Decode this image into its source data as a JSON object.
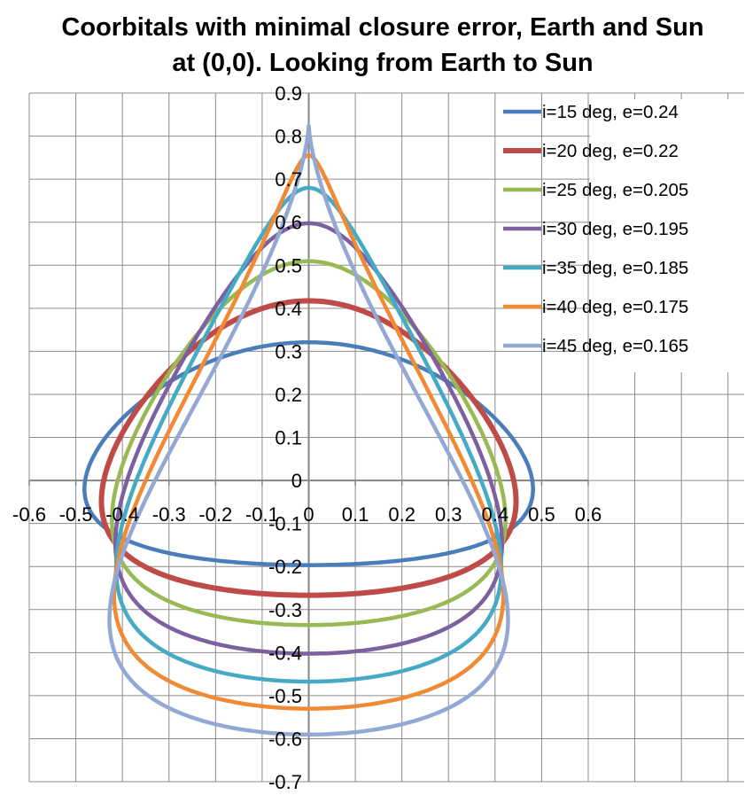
{
  "chart_data": {
    "type": "line",
    "title_lines": [
      "Coorbitals with minimal closure error, Earth and Sun",
      "at (0,0). Looking from Earth to Sun"
    ],
    "xlabel": "",
    "ylabel": "",
    "xlim": [
      -0.6,
      0.6
    ],
    "ylim": [
      -0.7,
      0.9
    ],
    "x_ticks": [
      "-0.6",
      "-0.5",
      "-0.4",
      "-0.3",
      "-0.2",
      "-0.1",
      "0",
      "0.1",
      "0.2",
      "0.3",
      "0.4",
      "0.5",
      "0.6"
    ],
    "y_ticks": [
      "0.9",
      "0.8",
      "0.7",
      "0.6",
      "0.5",
      "0.4",
      "0.3",
      "0.2",
      "0.1",
      "0",
      "-0.1",
      "-0.2",
      "-0.3",
      "-0.4",
      "-0.5",
      "-0.6",
      "-0.7"
    ],
    "grid": true,
    "legend_position": "top-right",
    "series": [
      {
        "name": "i=15 deg, e=0.24",
        "inclination_deg": 15,
        "eccentricity": 0.24,
        "color": "#4A7EBB",
        "top_y": 0.32,
        "bottom_y": -0.2
      },
      {
        "name": "i=20 deg, e=0.22",
        "inclination_deg": 20,
        "eccentricity": 0.22,
        "color": "#BE4B48",
        "top_y": 0.42,
        "bottom_y": -0.27
      },
      {
        "name": "i=25 deg, e=0.205",
        "inclination_deg": 25,
        "eccentricity": 0.205,
        "color": "#98B954",
        "top_y": 0.51,
        "bottom_y": -0.34
      },
      {
        "name": "i=30 deg, e=0.195",
        "inclination_deg": 30,
        "eccentricity": 0.195,
        "color": "#7D60A0",
        "top_y": 0.6,
        "bottom_y": -0.4
      },
      {
        "name": "i=35 deg, e=0.185",
        "inclination_deg": 35,
        "eccentricity": 0.185,
        "color": "#46AAC5",
        "top_y": 0.68,
        "bottom_y": -0.47
      },
      {
        "name": "i=40 deg, e=0.175",
        "inclination_deg": 40,
        "eccentricity": 0.175,
        "color": "#F08A34",
        "top_y": 0.76,
        "bottom_y": -0.53
      },
      {
        "name": "i=45 deg, e=0.165",
        "inclination_deg": 45,
        "eccentricity": 0.165,
        "color": "#93A9D4",
        "top_y": 0.82,
        "bottom_y": -0.59
      }
    ]
  }
}
